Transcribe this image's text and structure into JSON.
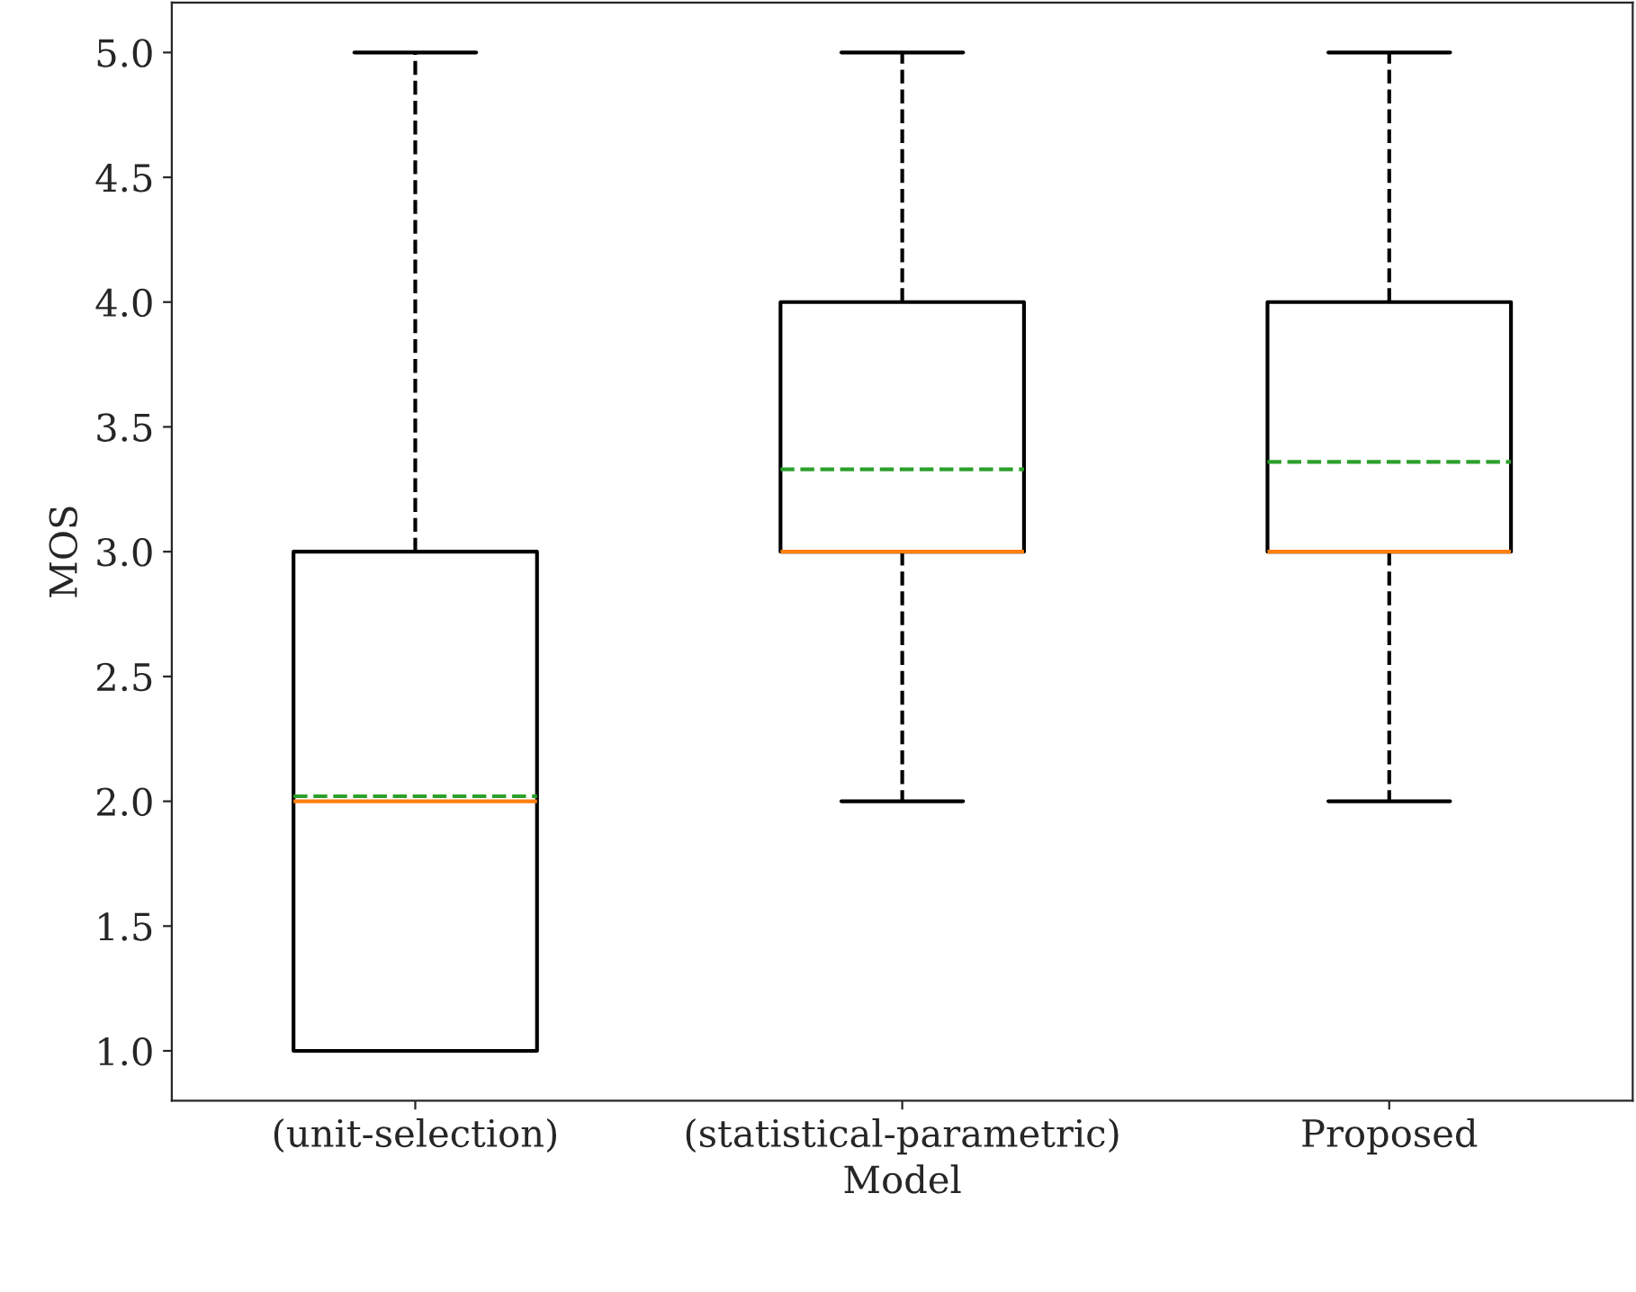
{
  "chart_data": {
    "type": "box",
    "xlabel": "Model",
    "ylabel": "MOS",
    "categories": [
      "(unit-selection)",
      "(statistical-parametric)",
      "Proposed"
    ],
    "boxes": [
      {
        "low": 1.0,
        "q1": 1.0,
        "median": 2.0,
        "q3": 3.0,
        "high": 5.0,
        "mean": 2.02
      },
      {
        "low": 2.0,
        "q1": 3.0,
        "median": 3.0,
        "q3": 4.0,
        "high": 5.0,
        "mean": 3.33
      },
      {
        "low": 2.0,
        "q1": 3.0,
        "median": 3.0,
        "q3": 4.0,
        "high": 5.0,
        "mean": 3.36
      }
    ],
    "ylim": [
      0.8,
      5.2
    ],
    "yticks": [
      {
        "value": 1,
        "label": "1.0"
      },
      {
        "value": 1.5,
        "label": "1.5"
      },
      {
        "value": 2,
        "label": "2.0"
      },
      {
        "value": 2.5,
        "label": "2.5"
      },
      {
        "value": 3,
        "label": "3.0"
      },
      {
        "value": 3.5,
        "label": "3.5"
      },
      {
        "value": 4,
        "label": "4.0"
      },
      {
        "value": 4.5,
        "label": "4.5"
      },
      {
        "value": 5,
        "label": "5.0"
      }
    ],
    "grid": false
  }
}
